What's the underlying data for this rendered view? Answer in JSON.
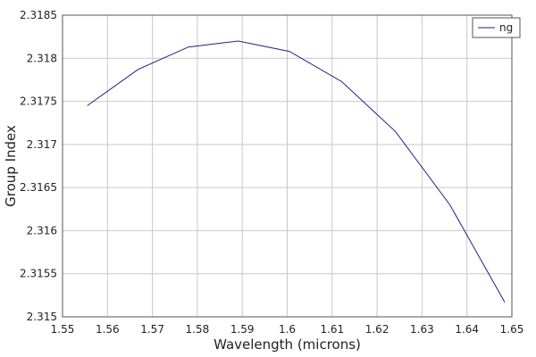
{
  "chart_data": {
    "type": "line",
    "title": "",
    "xlabel": "Wavelength (microns)",
    "ylabel": "Group Index",
    "xlim": [
      1.55,
      1.65
    ],
    "ylim": [
      2.315,
      2.3185
    ],
    "x_ticks": [
      "1.55",
      "1.56",
      "1.57",
      "1.58",
      "1.59",
      "1.6",
      "1.61",
      "1.62",
      "1.63",
      "1.64",
      "1.65"
    ],
    "y_ticks": [
      "2.315",
      "2.3155",
      "2.316",
      "2.3165",
      "2.317",
      "2.3175",
      "2.318",
      "2.3185"
    ],
    "grid": true,
    "legend_position": "top-right",
    "series": [
      {
        "name": "ng",
        "color": "#1a237e",
        "x": [
          1.5555,
          1.5668,
          1.578,
          1.5891,
          1.6005,
          1.6121,
          1.6241,
          1.6362,
          1.6484
        ],
        "y": [
          2.31745,
          2.31787,
          2.31813,
          2.3182,
          2.31808,
          2.31773,
          2.31715,
          2.3163,
          2.31517
        ]
      }
    ]
  }
}
